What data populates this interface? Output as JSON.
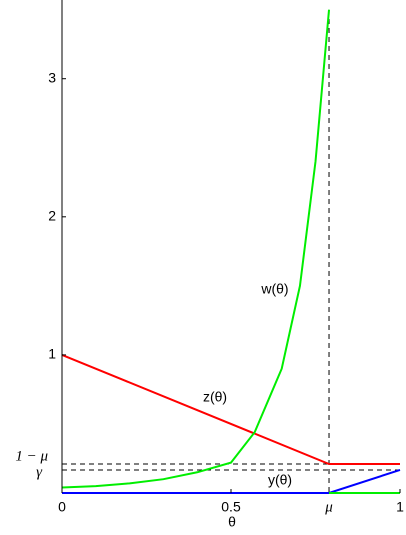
{
  "chart_data": {
    "type": "line",
    "xlabel": "θ",
    "xlim": [
      0,
      1
    ],
    "ylim": [
      0,
      3.57
    ],
    "xticks": [
      0,
      0.5,
      1
    ],
    "yticks": [
      1,
      2,
      3
    ],
    "ref_lines": {
      "x": [
        {
          "value": 0.79,
          "label": "μ"
        }
      ],
      "y": [
        {
          "value": 0.21,
          "label": "1 − μ"
        },
        {
          "value": 0.167,
          "label": "γ"
        }
      ]
    },
    "annotations": [
      "w(θ)",
      "z(θ)",
      "y(θ)"
    ],
    "series": [
      {
        "color": "#ff0000",
        "x": [
          0,
          0.79,
          1
        ],
        "values": [
          1,
          0.21,
          0.21
        ]
      },
      {
        "color": "#0000ff",
        "x": [
          0,
          0.79,
          1
        ],
        "values": [
          0,
          0,
          0.167
        ]
      },
      {
        "color": "#00ee00",
        "x": [
          0,
          0.1,
          0.2,
          0.3,
          0.4,
          0.5,
          0.57,
          0.65,
          0.704,
          0.75,
          0.79,
          0.79,
          0.79,
          1
        ],
        "values": [
          0.04,
          0.05,
          0.07,
          0.1,
          0.15,
          0.22,
          0.44,
          0.9,
          1.5,
          2.4,
          3.5,
          null,
          0,
          0
        ]
      }
    ]
  }
}
